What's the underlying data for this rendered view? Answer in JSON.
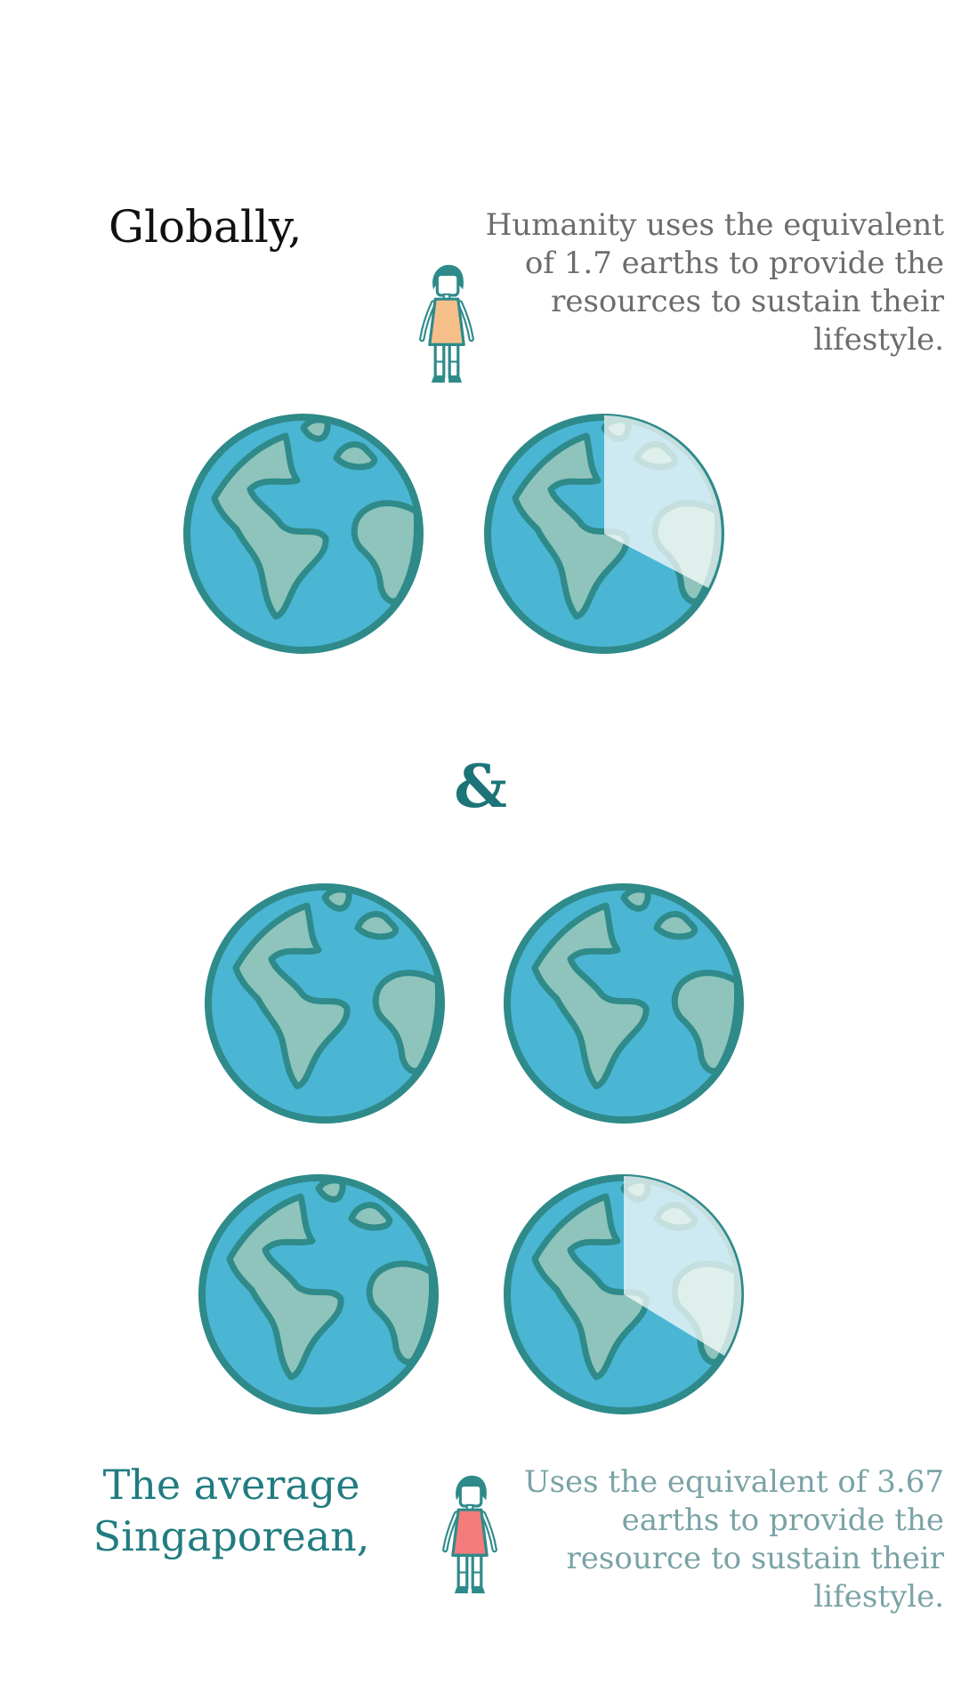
{
  "global": {
    "heading": "Globally,",
    "description": "Humanity uses the equivalent of 1.7 earths to provide the resources to sustain their lifestyle.",
    "earths_value": 1.7,
    "person_color": "#f6bf8a"
  },
  "separator": "&",
  "singapore": {
    "heading": "The average Singaporean,",
    "description": "Uses the equivalent of 3.67 earths to provide the resource to sustain their lifestyle.",
    "earths_value": 3.67,
    "person_color": "#f47b7b"
  },
  "colors": {
    "ocean": "#4bb5d4",
    "land": "#8ec4bb",
    "outline": "#2f8a8a",
    "faded": "#ffffff",
    "accent": "#1d7478"
  },
  "icons": [
    "person-icon",
    "earth-icon"
  ]
}
